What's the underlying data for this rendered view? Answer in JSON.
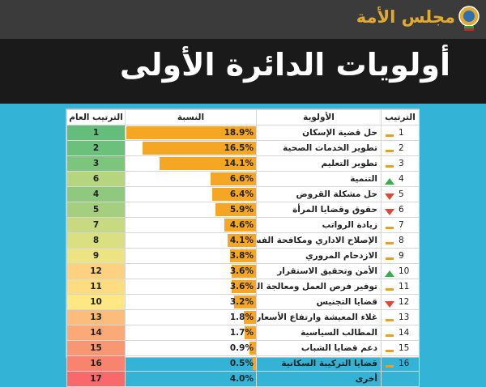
{
  "header": {
    "logo_text": "مجلس الأمة",
    "title": "أولويات الدائرة الأولى"
  },
  "table": {
    "columns": {
      "general": "الترتيب العام",
      "percent": "النسبة",
      "priority": "الأولوية",
      "rank": "الترتيب"
    },
    "rows": [
      {
        "general": "1",
        "general_color": "#63be7b",
        "percent": "18.9%",
        "pct": 18.9,
        "priority": "حل قضية الإسكان",
        "trend": "same",
        "rank": "1"
      },
      {
        "general": "2",
        "general_color": "#6bc07c",
        "percent": "16.5%",
        "pct": 16.5,
        "priority": "تطوير الخدمات الصحية",
        "trend": "same",
        "rank": "2"
      },
      {
        "general": "3",
        "general_color": "#7cc57d",
        "percent": "14.1%",
        "pct": 14.1,
        "priority": "تطوير التعليم",
        "trend": "same",
        "rank": "3"
      },
      {
        "general": "6",
        "general_color": "#b5d57f",
        "percent": "6.6%",
        "pct": 6.6,
        "priority": "التنمية",
        "trend": "up",
        "rank": "4"
      },
      {
        "general": "4",
        "general_color": "#8ec97e",
        "percent": "6.4%",
        "pct": 6.4,
        "priority": "حل مشكلة القروض",
        "trend": "down",
        "rank": "5"
      },
      {
        "general": "5",
        "general_color": "#a3cf7e",
        "percent": "5.9%",
        "pct": 5.9,
        "priority": "حقوق وقضايا المرأة",
        "trend": "down",
        "rank": "6"
      },
      {
        "general": "7",
        "general_color": "#c8da80",
        "percent": "4.6%",
        "pct": 4.6,
        "priority": "زيادة الرواتب",
        "trend": "same",
        "rank": "7"
      },
      {
        "general": "8",
        "general_color": "#dadf82",
        "percent": "4.1%",
        "pct": 4.1,
        "priority": "الإصلاح الاداري ومكافحة الفساد",
        "trend": "same",
        "rank": "8"
      },
      {
        "general": "9",
        "general_color": "#ece383",
        "percent": "3.8%",
        "pct": 3.8,
        "priority": "الازدحام المروري",
        "trend": "same",
        "rank": "9"
      },
      {
        "general": "12",
        "general_color": "#fdd17f",
        "percent": "3.6%",
        "pct": 3.6,
        "priority": "الأمن وتحقيق الاستقرار",
        "trend": "up",
        "rank": "10"
      },
      {
        "general": "11",
        "general_color": "#fedd81",
        "percent": "3.6%",
        "pct": 3.6,
        "priority": "توفير فرص العمل ومعالجة البطالة",
        "trend": "same",
        "rank": "11"
      },
      {
        "general": "10",
        "general_color": "#fee883",
        "percent": "3.2%",
        "pct": 3.2,
        "priority": "قضايا التجنيس",
        "trend": "down",
        "rank": "12"
      },
      {
        "general": "13",
        "general_color": "#fcbc7b",
        "percent": "1.8%",
        "pct": 1.8,
        "priority": "غلاء المعيشة وارتفاع الأسعار",
        "trend": "same",
        "rank": "13"
      },
      {
        "general": "14",
        "general_color": "#fbaa77",
        "percent": "1.7%",
        "pct": 1.7,
        "priority": "المطالب السياسية",
        "trend": "same",
        "rank": "14"
      },
      {
        "general": "15",
        "general_color": "#f99773",
        "percent": "0.9%",
        "pct": 0.9,
        "priority": "دعم قضايا الشباب",
        "trend": "same",
        "rank": "15"
      },
      {
        "general": "16",
        "general_color": "#f8846f",
        "percent": "0.5%",
        "pct": 0.5,
        "priority": "قضايا التركيبة السكانية",
        "trend": "same",
        "rank": "16"
      },
      {
        "general": "17",
        "general_color": "#f8696b",
        "percent": "4.0%",
        "pct": 0,
        "priority": "أخرى",
        "trend": "none",
        "rank": ""
      }
    ]
  },
  "colors": {
    "bar": "#f5a623",
    "background": "#33b3d6",
    "header": "#1a1a1a"
  },
  "icons": {
    "same": "dash-icon",
    "up": "triangle-up-icon",
    "down": "triangle-down-icon"
  }
}
